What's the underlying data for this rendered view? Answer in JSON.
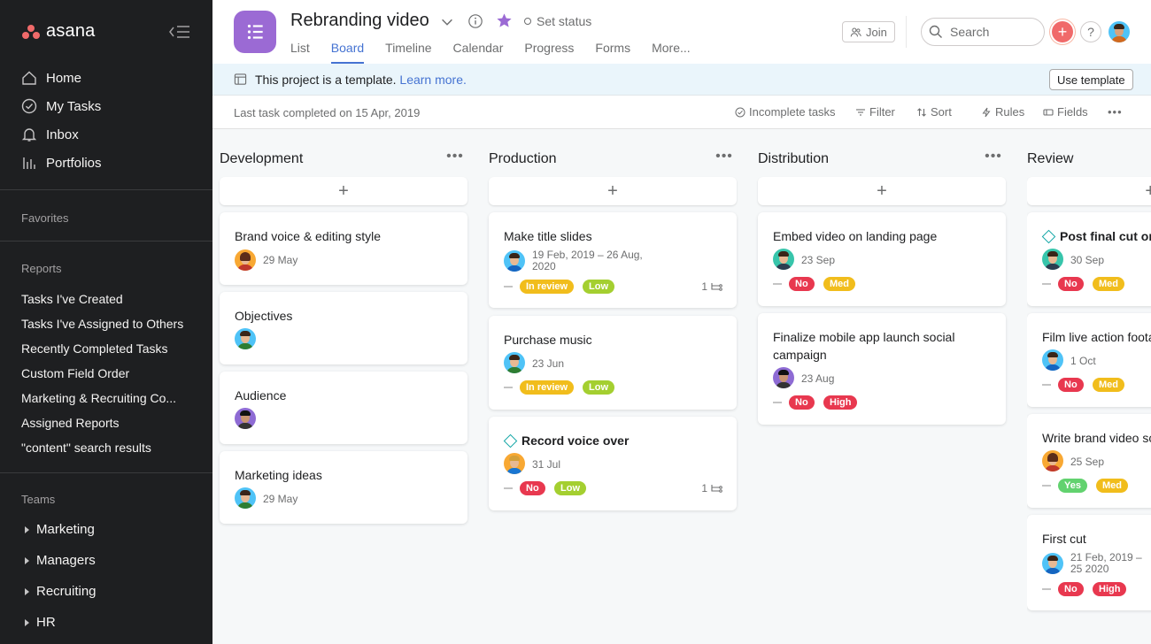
{
  "sidebar": {
    "logo": "asana",
    "nav": [
      {
        "label": "Home",
        "icon": "home-icon"
      },
      {
        "label": "My Tasks",
        "icon": "check-circle-icon"
      },
      {
        "label": "Inbox",
        "icon": "bell-icon"
      },
      {
        "label": "Portfolios",
        "icon": "bar-chart-icon"
      }
    ],
    "favorites_title": "Favorites",
    "reports_title": "Reports",
    "reports": [
      "Tasks I've Created",
      "Tasks I've Assigned to Others",
      "Recently Completed Tasks",
      "Custom Field Order",
      "Marketing & Recruiting Co...",
      "Assigned Reports",
      "\"content\" search results"
    ],
    "teams_title": "Teams",
    "teams": [
      "Marketing",
      "Managers",
      "Recruiting",
      "HR"
    ]
  },
  "header": {
    "title": "Rebranding video",
    "set_status": "Set status",
    "tabs": [
      "List",
      "Board",
      "Timeline",
      "Calendar",
      "Progress",
      "Forms",
      "More..."
    ],
    "active_tab": "Board",
    "join_label": "Join",
    "search_placeholder": "Search",
    "help_label": "?",
    "accent_color": "#4573d2",
    "project_color": "#9b6ad4"
  },
  "banner": {
    "text": "This project is a template.",
    "link": "Learn more.",
    "button": "Use template"
  },
  "toolbar": {
    "last_task": "Last task completed on 15 Apr, 2019",
    "incomplete": "Incomplete tasks",
    "filter": "Filter",
    "sort": "Sort",
    "rules": "Rules",
    "fields": "Fields",
    "more": "•••"
  },
  "board": {
    "add_symbol": "+",
    "more_symbol": "•••",
    "columns": [
      {
        "title": "Development",
        "cards": [
          {
            "title": "Brand voice & editing style",
            "due": "29 May",
            "avatar": "a1"
          },
          {
            "title": "Objectives",
            "avatar": "a2"
          },
          {
            "title": "Audience",
            "avatar": "a3"
          },
          {
            "title": "Marketing ideas",
            "due": "29 May",
            "avatar": "a2"
          }
        ]
      },
      {
        "title": "Production",
        "cards": [
          {
            "title": "Make title slides",
            "due": "19 Feb, 2019 – 26 Aug, 2020",
            "tags": [
              "In review",
              "Low"
            ],
            "subtasks": "1"
          },
          {
            "title": "Purchase music",
            "due": "23 Jun",
            "tags": [
              "In review",
              "Low"
            ]
          },
          {
            "title": "Record voice over",
            "milestone": true,
            "due": "31 Jul",
            "tags": [
              "No",
              "Low"
            ],
            "subtasks": "1"
          }
        ]
      },
      {
        "title": "Distribution",
        "cards": [
          {
            "title": "Embed video on landing page",
            "due": "23 Sep",
            "tags": [
              "No",
              "Med"
            ]
          },
          {
            "title": "Finalize mobile app launch social campaign",
            "due": "23 Aug",
            "tags": [
              "No",
              "High"
            ]
          }
        ]
      },
      {
        "title": "Review",
        "cards": [
          {
            "title": "Post final cut on",
            "milestone": true,
            "due": "30 Sep",
            "tags": [
              "No",
              "Med"
            ]
          },
          {
            "title": "Film live action foota",
            "due": "1 Oct",
            "tags": [
              "No",
              "Med"
            ]
          },
          {
            "title": "Write brand video sc",
            "due": "25 Sep",
            "tags": [
              "Yes",
              "Med"
            ]
          },
          {
            "title": "First cut",
            "due": "21 Feb, 2019 – 25 2020",
            "tags": [
              "No",
              "High"
            ]
          }
        ]
      }
    ]
  },
  "colors": {
    "in_review": "#f1bd1c",
    "low": "#a4cf30",
    "no": "#e8384f",
    "med": "#f1bd1c",
    "high": "#e8384f",
    "yes": "#62d26f"
  }
}
